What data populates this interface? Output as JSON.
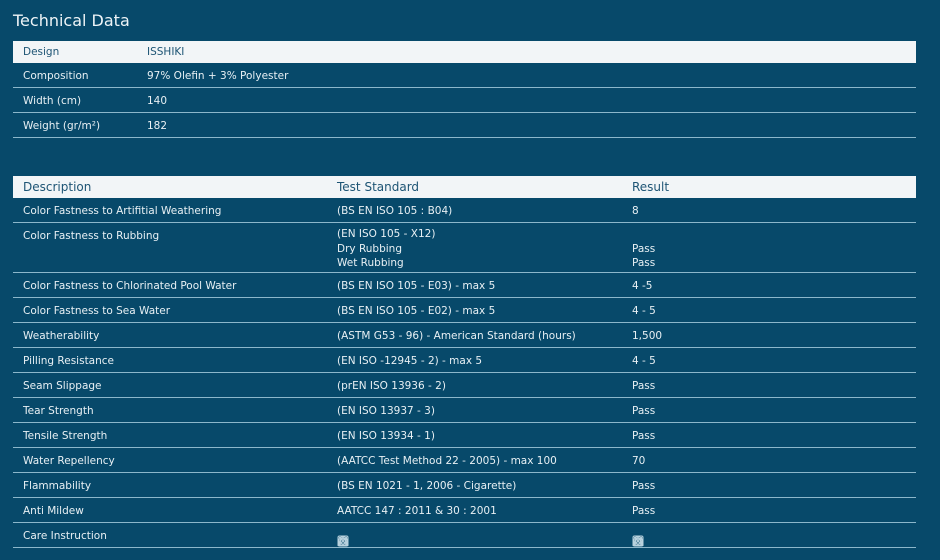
{
  "title": "Technical Data",
  "specs": {
    "header": {
      "label": "Design",
      "value": "ISSHIKI"
    },
    "rows": [
      {
        "label": "Composition",
        "value": "97% Olefin + 3% Polyester"
      },
      {
        "label": "Width (cm)",
        "value": "140"
      },
      {
        "label": "Weight (gr/m²)",
        "value": "182"
      }
    ]
  },
  "tests": {
    "headers": [
      "Description",
      "Test Standard",
      "Result"
    ],
    "rubbing": {
      "description": "Color Fastness to Rubbing",
      "standard": "(EN ISO 105 - X12)",
      "sub": [
        {
          "label": "Dry Rubbing",
          "result": "Pass"
        },
        {
          "label": "Wet Rubbing",
          "result": "Pass"
        }
      ]
    },
    "rows": [
      {
        "description": "Color Fastness to Artifitial Weathering",
        "standard": "(BS EN ISO 105 : B04)",
        "result": "8"
      },
      {
        "description": "Color Fastness to Chlorinated Pool Water",
        "standard": "(BS EN ISO 105 - E03) - max 5",
        "result": "4 -5"
      },
      {
        "description": "Color Fastness to Sea Water",
        "standard": "(BS EN ISO 105 - E02) - max 5",
        "result": "4 - 5"
      },
      {
        "description": "Weatherability",
        "standard": "(ASTM G53 - 96) - American Standard (hours)",
        "result": "1,500"
      },
      {
        "description": "Pilling Resistance",
        "standard": "(EN ISO -12945 - 2) - max 5",
        "result": "4 - 5"
      },
      {
        "description": "Seam Slippage",
        "standard": "(prEN ISO 13936 - 2)",
        "result": "Pass"
      },
      {
        "description": "Tear Strength",
        "standard": "(EN ISO 13937 - 3)",
        "result": "Pass"
      },
      {
        "description": "Tensile Strength",
        "standard": "(EN ISO 13934 - 1)",
        "result": "Pass"
      },
      {
        "description": "Water Repellency",
        "standard": "(AATCC Test Method 22 - 2005) - max 100",
        "result": "70"
      },
      {
        "description": "Flammability",
        "standard": "(BS EN 1021 - 1, 2006 - Cigarette)",
        "result": "Pass"
      },
      {
        "description": "Anti Mildew",
        "standard": "AATCC 147 : 2011 & 30 : 2001",
        "result": "Pass"
      }
    ],
    "care": {
      "description": "Care Instruction",
      "icons": [
        "wash-30-icon",
        "bleach-triangle-icon",
        "iron-icon",
        "do-not-dry-clean-icon",
        "tumble-dry-icon"
      ]
    }
  },
  "colors": {
    "background": "#07496a",
    "header_bg": "#f2f5f7",
    "header_text": "#1d5474",
    "divider": "#8cb7cb"
  }
}
